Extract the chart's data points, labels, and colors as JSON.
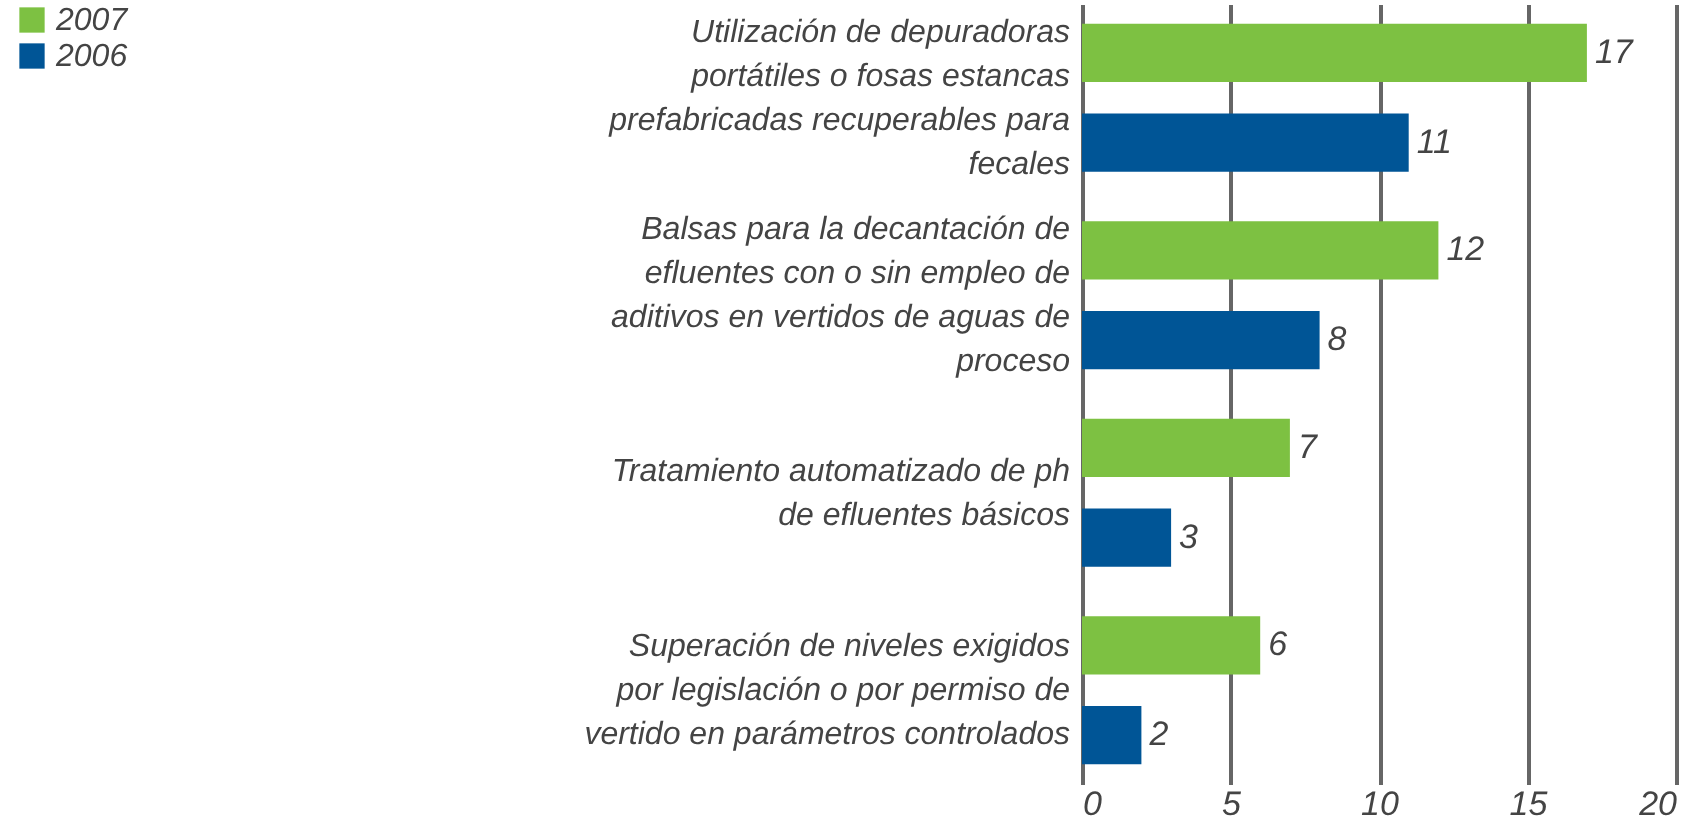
{
  "chart_data": {
    "type": "bar",
    "orientation": "horizontal",
    "categories": [
      "Utilización de depuradoras portátiles o fosas estancas prefabricadas recuperables para fecales",
      "Balsas para la decantación  de efluentes  con o sin empleo de aditivos  en vertidos de aguas de proceso",
      "Tratamiento  automatizado de ph de efluentes básicos",
      "Superación  de niveles exigidos por legislación o por permiso de vertido en parámetros controlados"
    ],
    "series": [
      {
        "name": "2007",
        "color": "#7dc142",
        "values": [
          17,
          12,
          7,
          6
        ]
      },
      {
        "name": "2006",
        "color": "#005596",
        "values": [
          11,
          8,
          3,
          2
        ]
      }
    ],
    "xlim": [
      0,
      20
    ],
    "xticks": [
      0,
      5,
      10,
      15,
      20
    ],
    "grid": "x",
    "legend": "top left",
    "data_labels": true
  }
}
